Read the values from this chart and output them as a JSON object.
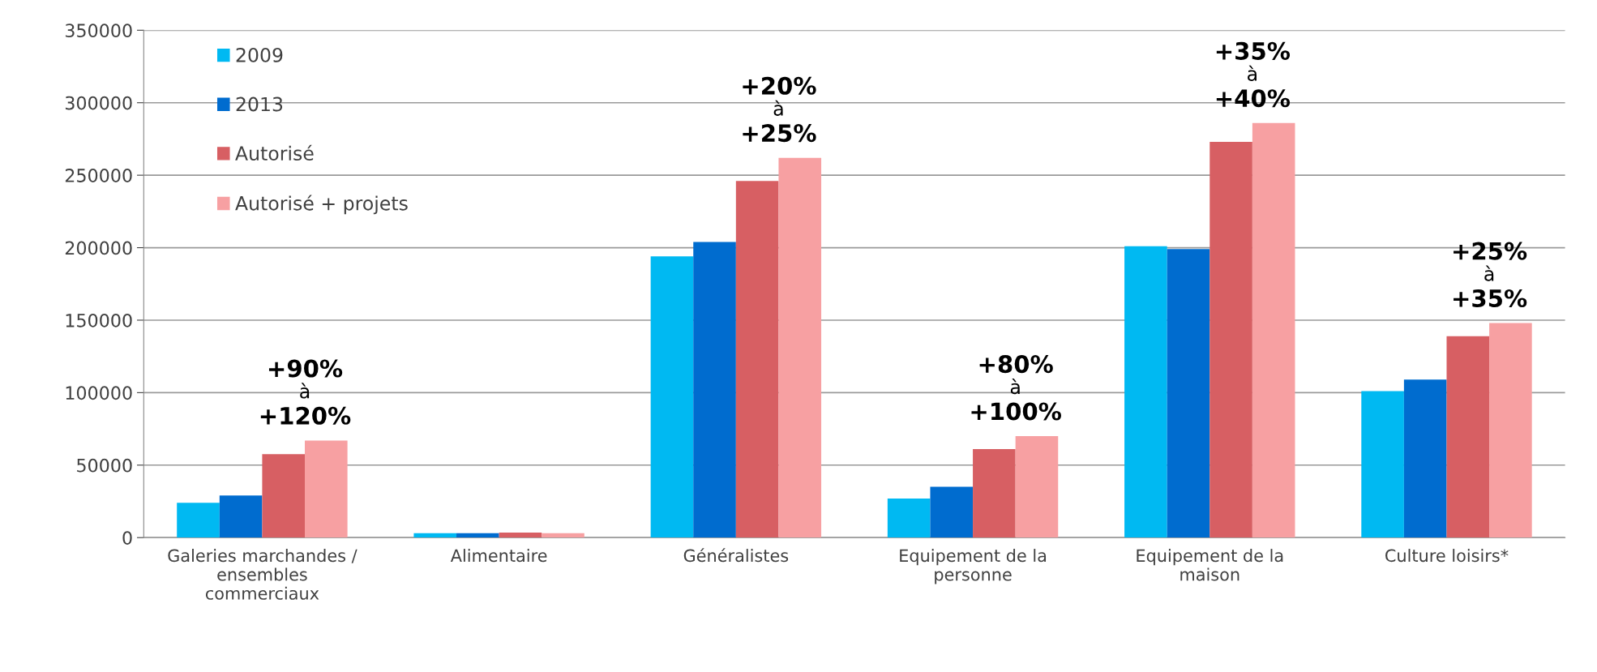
{
  "chart_data": {
    "type": "bar",
    "categories": [
      "Galeries marchandes / ensembles commerciaux",
      "Alimentaire",
      "Généralistes",
      "Equipement de la personne",
      "Equipement de la maison",
      "Culture loisirs*"
    ],
    "series": [
      {
        "name": "2009",
        "color": "#00b9f2",
        "values": [
          24000,
          3000,
          194000,
          27000,
          201000,
          101000
        ]
      },
      {
        "name": "2013",
        "color": "#006ccf",
        "values": [
          29000,
          3000,
          204000,
          35000,
          199000,
          109000
        ]
      },
      {
        "name": "Autorisé",
        "color": "#d75f63",
        "values": [
          57500,
          3500,
          246000,
          61000,
          273000,
          139000
        ]
      },
      {
        "name": "Autorisé + projets",
        "color": "#f7a0a2",
        "values": [
          67000,
          3000,
          262000,
          70000,
          286000,
          148000
        ]
      }
    ],
    "ylim": [
      0,
      350000
    ],
    "yticks": [
      0,
      50000,
      100000,
      150000,
      200000,
      250000,
      300000,
      350000
    ],
    "grid": "y",
    "legend": "top left",
    "annotations": [
      "+90%\nà\n+120%",
      "+20%\nà\n+25%",
      "+80%\nà\n+100%",
      "+35%\nà\n+40%",
      "+25%\nà\n+35%"
    ]
  }
}
